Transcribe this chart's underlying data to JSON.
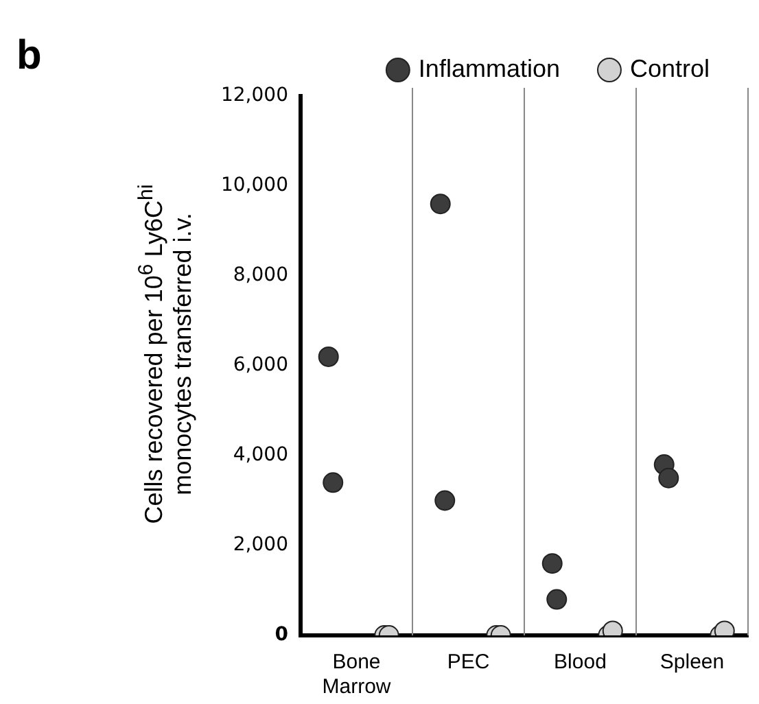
{
  "chart_data": {
    "type": "scatter",
    "title": "b",
    "ylabel": "Cells recovered per 10$^{6}$ Ly6C$^{hi}$ monocytes transferred i.v.",
    "categories": [
      "Bone Marrow",
      "PEC",
      "Blood",
      "Spleen"
    ],
    "series": [
      {
        "name": "Inflammation",
        "color": "#3c3c3c",
        "x": [
          "Bone Marrow",
          "Bone Marrow",
          "PEC",
          "PEC",
          "Blood",
          "Blood",
          "Spleen",
          "Spleen"
        ],
        "values": [
          6200,
          3400,
          9600,
          3000,
          1600,
          800,
          3800,
          3500
        ]
      },
      {
        "name": "Control",
        "color": "#d2d2d2",
        "x": [
          "Bone Marrow",
          "Bone Marrow",
          "PEC",
          "PEC",
          "Blood",
          "Blood",
          "Spleen",
          "Spleen"
        ],
        "values": [
          0,
          0,
          0,
          0,
          0,
          100,
          0,
          100
        ]
      }
    ],
    "ylim": [
      0,
      12000
    ],
    "yticks": [
      0,
      {
        "value": 2000,
        "label": "2,000"
      },
      {
        "value": 4000,
        "label": "4,000"
      },
      {
        "value": 6000,
        "label": "6,000"
      },
      {
        "value": 8000,
        "label": "8,000"
      },
      {
        "value": 10000,
        "label": "10,000"
      },
      {
        "value": 12000,
        "label": "12,000"
      }
    ],
    "grid": "x",
    "legend": "top right",
    "marker": "circle"
  }
}
